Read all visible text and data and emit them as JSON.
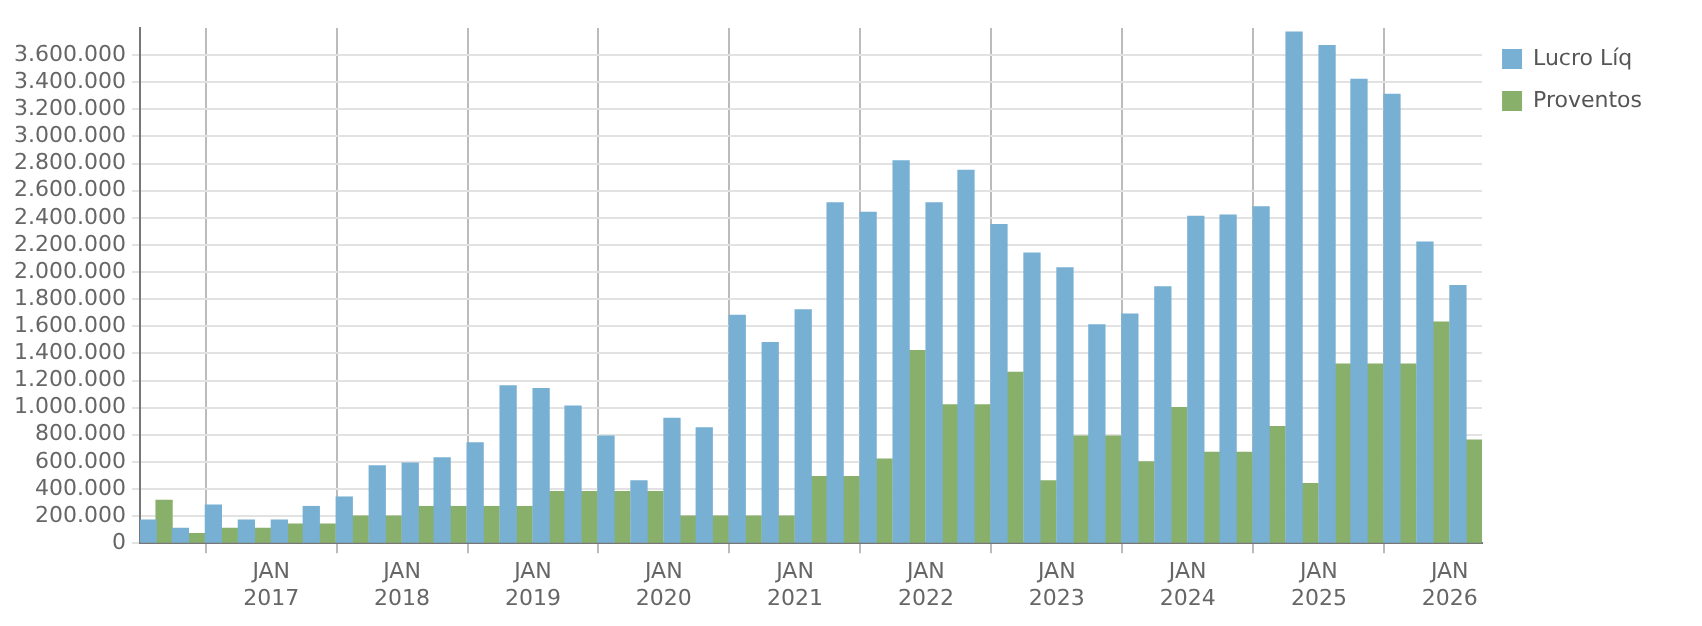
{
  "chart_data": {
    "type": "bar",
    "x": [
      "2016-02-15",
      "2016-05-15",
      "2016-08-15",
      "2016-11-15",
      "2017-02-15",
      "2017-05-15",
      "2017-08-15",
      "2017-11-15",
      "2018-02-15",
      "2018-05-15",
      "2018-08-15",
      "2018-11-15",
      "2019-02-15",
      "2019-05-15",
      "2019-08-15",
      "2019-11-15",
      "2020-02-15",
      "2020-05-15",
      "2020-08-15",
      "2020-11-15",
      "2021-02-15",
      "2021-05-15",
      "2021-08-15",
      "2021-11-15",
      "2022-02-15",
      "2022-05-15",
      "2022-08-15",
      "2022-11-15",
      "2023-02-15",
      "2023-05-15",
      "2023-08-15",
      "2023-11-15",
      "2024-02-15",
      "2024-05-15",
      "2024-08-15",
      "2024-11-15",
      "2025-02-15",
      "2025-05-15",
      "2025-08-15",
      "2025-11-15",
      "2026-02-15"
    ],
    "series": [
      {
        "name": "Lucro Líq",
        "color": "#77b0d3",
        "values": [
          170000,
          110000,
          280000,
          170000,
          170000,
          270000,
          340000,
          570000,
          590000,
          630000,
          740000,
          1160000,
          1140000,
          1010000,
          790000,
          460000,
          920000,
          850000,
          1680000,
          1480000,
          1720000,
          2510000,
          2440000,
          2820000,
          2510000,
          2750000,
          2350000,
          2140000,
          2030000,
          1610000,
          1690000,
          1890000,
          2410000,
          2420000,
          2480000,
          3770000,
          3670000,
          3420000,
          3310000,
          2220000,
          1900000
        ]
      },
      {
        "name": "Proventos",
        "color": "#88b06a",
        "values": [
          315000,
          70000,
          110000,
          110000,
          140000,
          140000,
          200000,
          200000,
          270000,
          270000,
          270000,
          270000,
          380000,
          380000,
          380000,
          380000,
          200000,
          200000,
          200000,
          200000,
          490000,
          490000,
          620000,
          1420000,
          1020000,
          1020000,
          1260000,
          460000,
          790000,
          790000,
          600000,
          1000000,
          670000,
          670000,
          860000,
          440000,
          1320000,
          1320000,
          1320000,
          1630000,
          760000
        ]
      }
    ],
    "xlim": [
      "2016-01",
      "2026-04"
    ],
    "xticks": [
      {
        "value": "2017-01",
        "label": "JAN 2017"
      },
      {
        "value": "2018-01",
        "label": "JAN 2018"
      },
      {
        "value": "2019-01",
        "label": "JAN 2019"
      },
      {
        "value": "2020-01",
        "label": "JAN 2020"
      },
      {
        "value": "2021-01",
        "label": "JAN 2021"
      },
      {
        "value": "2022-01",
        "label": "JAN 2022"
      },
      {
        "value": "2023-01",
        "label": "JAN 2023"
      },
      {
        "value": "2024-01",
        "label": "JAN 2024"
      },
      {
        "value": "2025-01",
        "label": "JAN 2025"
      },
      {
        "value": "2026-01",
        "label": "JAN 2026"
      }
    ],
    "ylim": [
      0,
      3800000
    ],
    "yticks": [
      0,
      {
        "value": 200000,
        "label": "200.000"
      },
      {
        "value": 400000,
        "label": "400.000"
      },
      {
        "value": 600000,
        "label": "600.000"
      },
      {
        "value": 800000,
        "label": "800.000"
      },
      {
        "value": 1000000,
        "label": "1.000.000"
      },
      {
        "value": 1200000,
        "label": "1.200.000"
      },
      {
        "value": 1400000,
        "label": "1.400.000"
      },
      {
        "value": 1600000,
        "label": "1.600.000"
      },
      {
        "value": 1800000,
        "label": "1.800.000"
      },
      {
        "value": 2000000,
        "label": "2.000.000"
      },
      {
        "value": 2200000,
        "label": "2.200.000"
      },
      {
        "value": 2400000,
        "label": "2.400.000"
      },
      {
        "value": 2600000,
        "label": "2.600.000"
      },
      {
        "value": 2800000,
        "label": "2.800.000"
      },
      {
        "value": 3000000,
        "label": "3.000.000"
      },
      {
        "value": 3200000,
        "label": "3.200.000"
      },
      {
        "value": 3400000,
        "label": "3.400.000"
      },
      {
        "value": 3600000,
        "label": "3.600.000"
      }
    ],
    "grid": true,
    "legend": "top right"
  }
}
